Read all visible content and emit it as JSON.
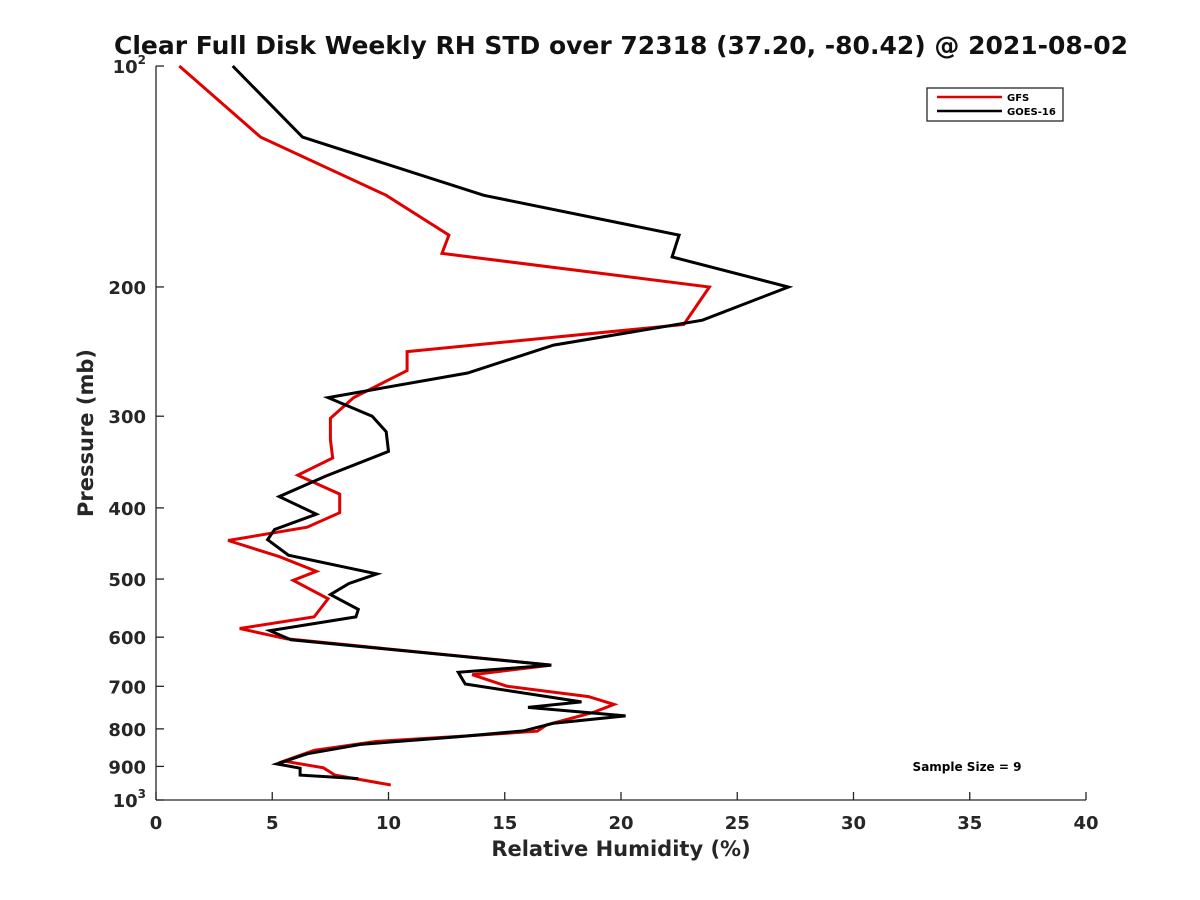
{
  "chart_data": {
    "type": "line",
    "title": "Clear Full Disk Weekly RH STD over 72318 (37.20, -80.42) @ 2021-08-02",
    "xlabel": "Relative Humidity (%)",
    "ylabel": "Pressure (mb)",
    "xlim": [
      0,
      40
    ],
    "ylim": [
      100,
      1000
    ],
    "y_scale": "log",
    "y_reversed": true,
    "x_ticks": [
      0,
      5,
      10,
      15,
      20,
      25,
      30,
      35,
      40
    ],
    "y_ticks": [
      {
        "value": 100,
        "label": "10",
        "sup": "2"
      },
      {
        "value": 200,
        "label": "200"
      },
      {
        "value": 300,
        "label": "300"
      },
      {
        "value": 400,
        "label": "400"
      },
      {
        "value": 500,
        "label": "500"
      },
      {
        "value": 600,
        "label": "600"
      },
      {
        "value": 700,
        "label": "700"
      },
      {
        "value": 800,
        "label": "800"
      },
      {
        "value": 900,
        "label": "900"
      },
      {
        "value": 1000,
        "label": "10",
        "sup": "3"
      }
    ],
    "grid": false,
    "legend_position": "top-right",
    "series": [
      {
        "name": "GFS",
        "color": "#e00000",
        "points": [
          [
            1.0,
            100
          ],
          [
            4.5,
            125
          ],
          [
            9.9,
            150
          ],
          [
            12.6,
            170
          ],
          [
            12.3,
            180
          ],
          [
            23.8,
            200
          ],
          [
            22.7,
            225
          ],
          [
            10.8,
            245
          ],
          [
            10.8,
            260
          ],
          [
            8.5,
            283
          ],
          [
            7.5,
            302
          ],
          [
            7.5,
            323
          ],
          [
            7.6,
            342
          ],
          [
            6.1,
            361
          ],
          [
            7.9,
            383
          ],
          [
            7.9,
            406
          ],
          [
            6.5,
            425
          ],
          [
            3.1,
            443
          ],
          [
            5.3,
            466
          ],
          [
            6.9,
            488
          ],
          [
            5.9,
            502
          ],
          [
            7.4,
            532
          ],
          [
            6.8,
            563
          ],
          [
            3.6,
            584
          ],
          [
            5.6,
            603
          ],
          [
            17.0,
            655
          ],
          [
            13.6,
            675
          ],
          [
            15.1,
            700
          ],
          [
            18.6,
            723
          ],
          [
            19.7,
            741
          ],
          [
            18.8,
            760
          ],
          [
            16.8,
            790
          ],
          [
            16.4,
            806
          ],
          [
            13.3,
            818
          ],
          [
            9.5,
            832
          ],
          [
            6.8,
            856
          ],
          [
            5.5,
            885
          ],
          [
            7.2,
            904
          ],
          [
            7.7,
            925
          ],
          [
            10.1,
            954
          ]
        ]
      },
      {
        "name": "GOES-16",
        "color": "#000000",
        "points": [
          [
            3.3,
            100
          ],
          [
            6.3,
            125
          ],
          [
            14.1,
            150
          ],
          [
            22.5,
            170
          ],
          [
            22.2,
            182
          ],
          [
            27.2,
            200
          ],
          [
            23.5,
            222
          ],
          [
            17.1,
            240
          ],
          [
            13.4,
            262
          ],
          [
            7.4,
            283
          ],
          [
            9.3,
            300
          ],
          [
            9.9,
            315
          ],
          [
            10.0,
            335
          ],
          [
            7.3,
            362
          ],
          [
            5.3,
            386
          ],
          [
            6.9,
            408
          ],
          [
            5.1,
            428
          ],
          [
            4.8,
            442
          ],
          [
            5.7,
            464
          ],
          [
            9.5,
            492
          ],
          [
            8.3,
            507
          ],
          [
            7.5,
            525
          ],
          [
            8.7,
            550
          ],
          [
            8.6,
            563
          ],
          [
            4.9,
            588
          ],
          [
            5.8,
            605
          ],
          [
            17.0,
            655
          ],
          [
            13.0,
            670
          ],
          [
            13.3,
            695
          ],
          [
            18.3,
            735
          ],
          [
            16.0,
            748
          ],
          [
            20.2,
            768
          ],
          [
            17.1,
            786
          ],
          [
            15.8,
            805
          ],
          [
            13.0,
            820
          ],
          [
            8.8,
            840
          ],
          [
            6.5,
            865
          ],
          [
            5.2,
            893
          ],
          [
            6.2,
            905
          ],
          [
            6.2,
            925
          ],
          [
            8.7,
            935
          ]
        ]
      }
    ],
    "annotation": "Sample Size = 9"
  }
}
